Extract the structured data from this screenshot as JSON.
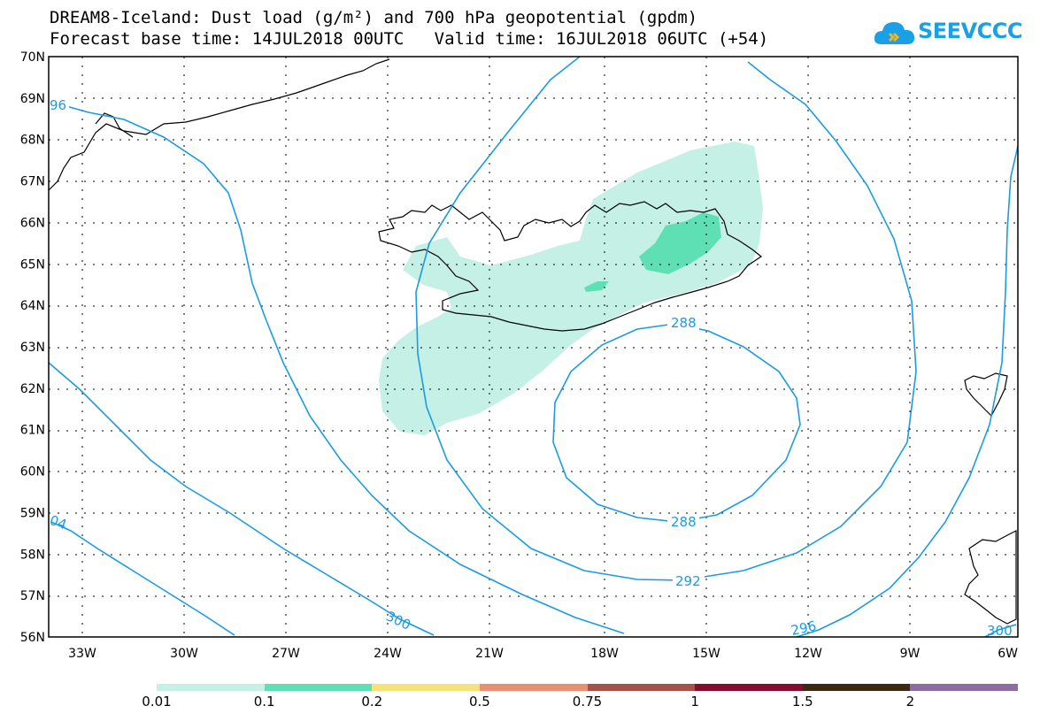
{
  "header": {
    "title_line1": "DREAM8-Iceland: Dust load (g/m²) and 700 hPa geopotential (gpdm)",
    "title_line2": "Forecast base time: 14JUL2018 00UTC   Valid time: 16JUL2018 06UTC (+54)"
  },
  "logo": {
    "text": "SEEVCCC",
    "icon": "cloud-icon",
    "color": "#1aa0e6"
  },
  "map": {
    "lat_labels": [
      "70N",
      "69N",
      "68N",
      "67N",
      "66N",
      "65N",
      "64N",
      "63N",
      "62N",
      "61N",
      "60N",
      "59N",
      "58N",
      "57N",
      "56N"
    ],
    "lon_labels": [
      "33W",
      "30W",
      "27W",
      "24W",
      "21W",
      "18W",
      "15W",
      "12W",
      "9W",
      "6W"
    ],
    "contour_color": "#1a9be6",
    "contour_labels": {
      "c288_top": "288",
      "c288_bottom": "288",
      "c292": "292",
      "c296_left": "96",
      "c296_right": "296",
      "c300": "300",
      "c300_right": "300",
      "c304_left": "04"
    }
  },
  "legend": {
    "colors": [
      "#c4f0e6",
      "#5ee0b4",
      "#f5e37a",
      "#e89070",
      "#a5524a",
      "#850c2c",
      "#3d2814",
      "#8e6ba0"
    ],
    "labels": [
      "0.01",
      "0.1",
      "0.2",
      "0.5",
      "0.75",
      "1",
      "1.5",
      "2"
    ]
  }
}
